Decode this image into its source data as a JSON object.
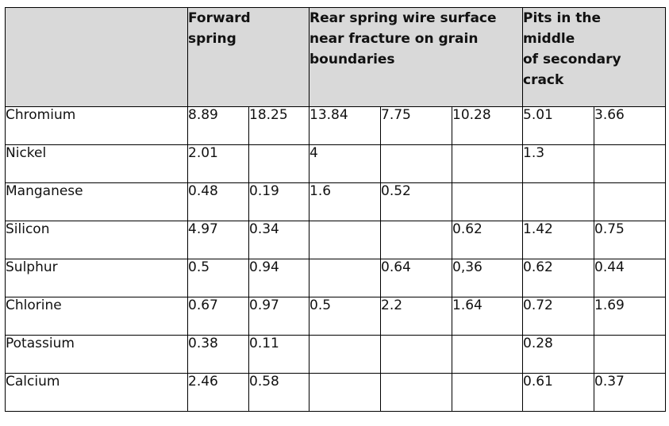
{
  "headers": {
    "corner": "",
    "forward": [
      "Forward",
      "spring"
    ],
    "rear": [
      "Rear spring wire surface",
      "near fracture on grain",
      "boundaries"
    ],
    "pits": [
      "Pits in the",
      "middle",
      "of secondary",
      "crack"
    ]
  },
  "rows": [
    {
      "label": "Chromium",
      "cells": [
        "8.89",
        "18.25",
        "13.84",
        "7.75",
        "10.28",
        "5.01",
        "3.66"
      ]
    },
    {
      "label": "Nickel",
      "cells": [
        "2.01",
        "",
        "4",
        "",
        "",
        "1.3",
        ""
      ]
    },
    {
      "label": "Manganese",
      "cells": [
        "0.48",
        "0.19",
        "1.6",
        "0.52",
        "",
        "",
        ""
      ]
    },
    {
      "label": "Silicon",
      "cells": [
        "4.97",
        "0.34",
        "",
        "",
        "0.62",
        "1.42",
        "0.75"
      ]
    },
    {
      "label": "Sulphur",
      "cells": [
        "0.5",
        "0.94",
        "",
        "0.64",
        "0,36",
        "0.62",
        "0.44"
      ]
    },
    {
      "label": "Chlorine",
      "cells": [
        "0.67",
        "0.97",
        "0.5",
        "2.2",
        "1.64",
        "0.72",
        "1.69"
      ]
    },
    {
      "label": "Potassium",
      "cells": [
        "0.38",
        "0.11",
        "",
        "",
        "",
        "0.28",
        ""
      ]
    },
    {
      "label": "Calcium",
      "cells": [
        "2.46",
        "0.58",
        "",
        "",
        "",
        "0.61",
        "0.37"
      ]
    }
  ]
}
